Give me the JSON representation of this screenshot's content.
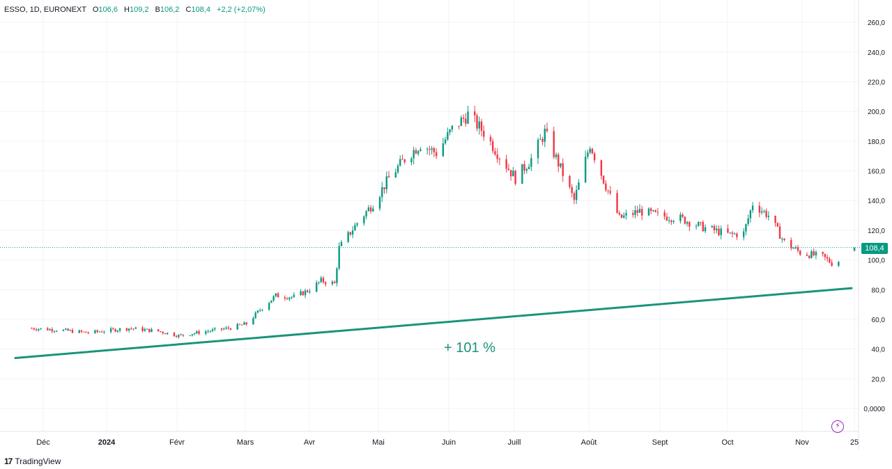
{
  "legend": {
    "symbol": "ESSO, 1D, EURONEXT",
    "open_label": "O",
    "open": "106,6",
    "high_label": "H",
    "high": "109,2",
    "low_label": "B",
    "low": "106,2",
    "close_label": "C",
    "close": "108,4",
    "change": "+2,2 (+2,07%)"
  },
  "last_price": "108,4",
  "branding": "TradingView",
  "colors": {
    "up": "#089981",
    "down": "#f23645",
    "trend": "#1a9479",
    "grid": "#f0f3fa"
  },
  "chart_data": {
    "type": "candlestick",
    "symbol": "ESSO",
    "interval": "1D",
    "exchange": "EURONEXT",
    "y_axis": {
      "min": 0,
      "max": 260,
      "ticks": [
        "260,0",
        "240,0",
        "220,0",
        "200,0",
        "180,0",
        "160,0",
        "140,0",
        "120,0",
        "100,0",
        "80,0",
        "60,0",
        "40,0",
        "20,0",
        "0,0000"
      ],
      "tick_values": [
        260,
        240,
        220,
        200,
        180,
        160,
        140,
        120,
        100,
        80,
        60,
        40,
        20,
        0
      ]
    },
    "x_axis": {
      "labels": [
        "Déc",
        "2024",
        "Févr",
        "Mars",
        "Avr",
        "Mai",
        "Juin",
        "Juill",
        "Août",
        "Sept",
        "Oct",
        "Nov",
        "25"
      ]
    },
    "close_series": [
      {
        "date": "2023-11-20",
        "close": 54
      },
      {
        "date": "2023-12-01",
        "close": 53
      },
      {
        "date": "2023-12-15",
        "close": 51
      },
      {
        "date": "2024-01-02",
        "close": 54
      },
      {
        "date": "2024-01-15",
        "close": 52
      },
      {
        "date": "2024-01-24",
        "close": 49
      },
      {
        "date": "2024-02-01",
        "close": 51
      },
      {
        "date": "2024-02-15",
        "close": 54
      },
      {
        "date": "2024-02-23",
        "close": 57
      },
      {
        "date": "2024-03-01",
        "close": 68
      },
      {
        "date": "2024-03-07",
        "close": 76
      },
      {
        "date": "2024-03-15",
        "close": 75
      },
      {
        "date": "2024-03-22",
        "close": 80
      },
      {
        "date": "2024-03-27",
        "close": 86
      },
      {
        "date": "2024-04-02",
        "close": 84
      },
      {
        "date": "2024-04-04",
        "close": 108
      },
      {
        "date": "2024-04-12",
        "close": 125
      },
      {
        "date": "2024-04-19",
        "close": 138
      },
      {
        "date": "2024-04-26",
        "close": 155
      },
      {
        "date": "2024-05-03",
        "close": 168
      },
      {
        "date": "2024-05-10",
        "close": 178
      },
      {
        "date": "2024-05-17",
        "close": 172
      },
      {
        "date": "2024-05-24",
        "close": 188
      },
      {
        "date": "2024-05-31",
        "close": 198
      },
      {
        "date": "2024-06-07",
        "close": 186
      },
      {
        "date": "2024-06-14",
        "close": 170
      },
      {
        "date": "2024-06-21",
        "close": 155
      },
      {
        "date": "2024-06-28",
        "close": 168
      },
      {
        "date": "2024-07-04",
        "close": 186
      },
      {
        "date": "2024-07-12",
        "close": 158
      },
      {
        "date": "2024-07-17",
        "close": 140
      },
      {
        "date": "2024-07-24",
        "close": 178
      },
      {
        "date": "2024-07-31",
        "close": 150
      },
      {
        "date": "2024-08-06",
        "close": 128
      },
      {
        "date": "2024-08-15",
        "close": 133
      },
      {
        "date": "2024-08-23",
        "close": 130
      },
      {
        "date": "2024-09-02",
        "close": 128
      },
      {
        "date": "2024-09-12",
        "close": 122
      },
      {
        "date": "2024-09-24",
        "close": 117
      },
      {
        "date": "2024-09-30",
        "close": 118
      },
      {
        "date": "2024-10-04",
        "close": 138
      },
      {
        "date": "2024-10-11",
        "close": 130
      },
      {
        "date": "2024-10-18",
        "close": 112
      },
      {
        "date": "2024-10-25",
        "close": 105
      },
      {
        "date": "2024-11-04",
        "close": 102
      },
      {
        "date": "2024-11-08",
        "close": 98
      },
      {
        "date": "2024-11-14",
        "close": 101
      },
      {
        "date": "2024-11-18",
        "close": 108.4
      }
    ],
    "annotations": [
      {
        "type": "trend_line",
        "from": {
          "date": "2023-11-21",
          "value": 34
        },
        "to": {
          "date": "2024-11-20",
          "value": 81
        }
      },
      {
        "type": "text",
        "text": "+ 101 %"
      }
    ],
    "last_price_line": 108.4,
    "grid": true
  }
}
